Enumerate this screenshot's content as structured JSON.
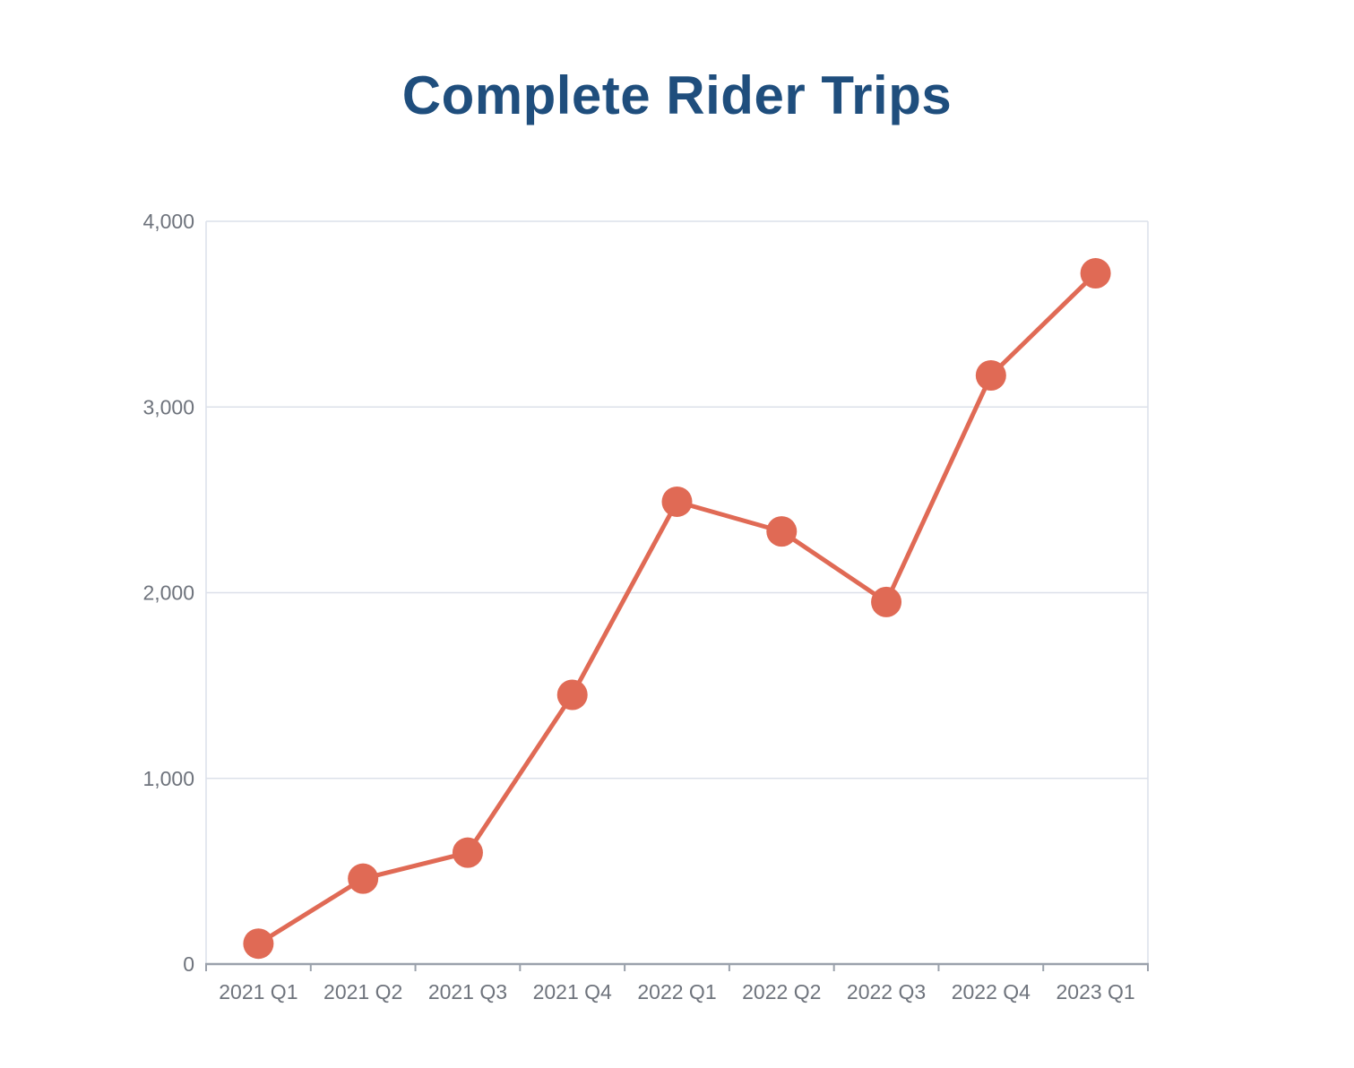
{
  "page": {
    "background": "#FFFFFF"
  },
  "chart_data": {
    "type": "line",
    "title": "Complete Rider Trips",
    "xlabel": "",
    "ylabel": "",
    "categories": [
      "2021 Q1",
      "2021 Q2",
      "2021 Q3",
      "2021 Q4",
      "2022 Q1",
      "2022 Q2",
      "2022 Q3",
      "2022 Q4",
      "2023 Q1"
    ],
    "series": [
      {
        "name": "Complete Rider Trips",
        "values": [
          110,
          460,
          600,
          1450,
          2490,
          2330,
          1950,
          3170,
          3720
        ]
      }
    ],
    "ylim": [
      0,
      4000
    ],
    "y_ticks": [
      {
        "value": 0,
        "label": "0"
      },
      {
        "value": 1000,
        "label": "1,000"
      },
      {
        "value": 2000,
        "label": "2,000"
      },
      {
        "value": 3000,
        "label": "3,000"
      },
      {
        "value": 4000,
        "label": "4,000"
      }
    ],
    "grid": "horizontal",
    "legend": "none",
    "colors": {
      "line": "#E06A55",
      "marker": "#E06A55",
      "title": "#1F4E7D",
      "axis_text": "#6E737C",
      "gridline": "#DCE0EA",
      "axis_line": "#9AA1AB",
      "background": "#FFFFFF"
    }
  }
}
